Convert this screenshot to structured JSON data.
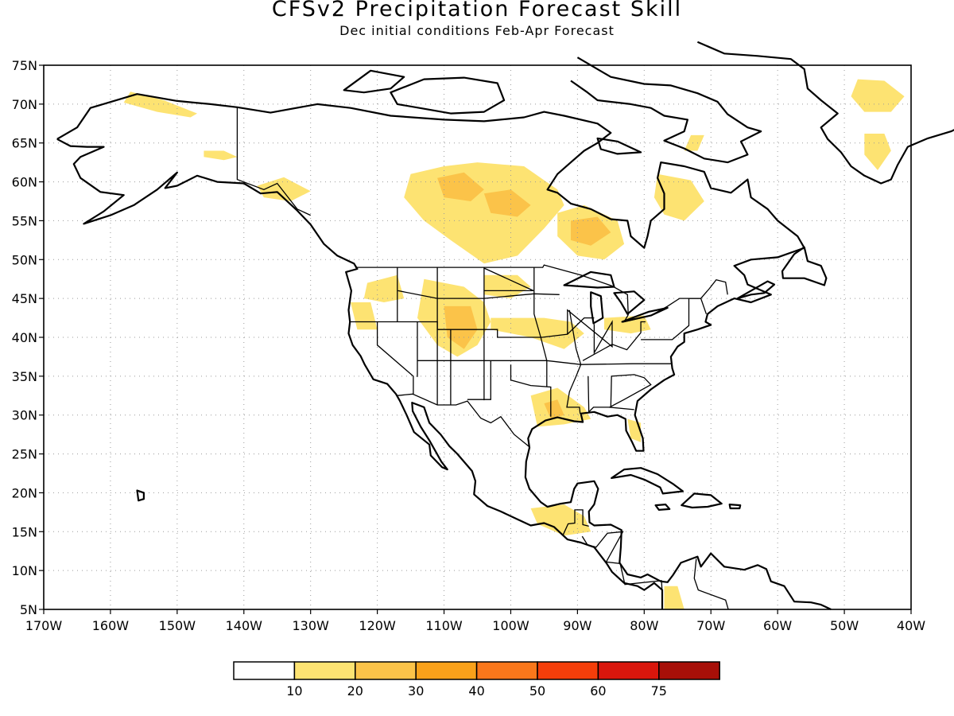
{
  "title": "CFSv2 Precipitation Forecast Skill",
  "subtitle": "Dec initial conditions   Feb-Apr Forecast",
  "chart_data": {
    "type": "map",
    "projection": "equirectangular",
    "lon_range": [
      -170,
      -40
    ],
    "lat_range": [
      5,
      75
    ],
    "grid": true,
    "lat_ticks": [
      "5N",
      "10N",
      "15N",
      "20N",
      "25N",
      "30N",
      "35N",
      "40N",
      "45N",
      "50N",
      "55N",
      "60N",
      "65N",
      "70N",
      "75N"
    ],
    "lon_ticks": [
      "170W",
      "160W",
      "150W",
      "140W",
      "130W",
      "120W",
      "110W",
      "100W",
      "90W",
      "80W",
      "70W",
      "60W",
      "50W",
      "40W"
    ],
    "colorbar": {
      "labels": [
        "10",
        "20",
        "30",
        "40",
        "50",
        "60",
        "75"
      ],
      "colors": [
        "#ffffff",
        "#fde372",
        "#fbc349",
        "#f9a11a",
        "#f9771b",
        "#f43e0a",
        "#d9160c",
        "#a70f08"
      ]
    },
    "skill_regions": [
      {
        "name": "alaska-north",
        "level": 1,
        "points": [
          [
            -157,
            71.6
          ],
          [
            -152,
            70.5
          ],
          [
            -147,
            68.8
          ],
          [
            -148,
            68.3
          ],
          [
            -153,
            69
          ],
          [
            -158,
            70.2
          ]
        ]
      },
      {
        "name": "alaska-south",
        "level": 1,
        "points": [
          [
            -146,
            63.2
          ],
          [
            -143,
            62.8
          ],
          [
            -141,
            63.2
          ],
          [
            -143,
            64
          ],
          [
            -146,
            64
          ]
        ]
      },
      {
        "name": "gulf-coast-bc",
        "level": 1,
        "points": [
          [
            -138,
            59.5
          ],
          [
            -134,
            60.6
          ],
          [
            -130,
            58.8
          ],
          [
            -133,
            57.5
          ],
          [
            -137,
            58
          ]
        ]
      },
      {
        "name": "nw-territories",
        "level": 1,
        "points": [
          [
            -116,
            58
          ],
          [
            -115,
            61
          ],
          [
            -110,
            62
          ],
          [
            -105,
            62.5
          ],
          [
            -98,
            62
          ],
          [
            -93,
            59
          ],
          [
            -92,
            57
          ],
          [
            -95,
            54
          ],
          [
            -99,
            50.5
          ],
          [
            -104,
            49.5
          ],
          [
            -109,
            52.5
          ],
          [
            -113,
            55
          ]
        ]
      },
      {
        "name": "nw-territories-core",
        "level": 2,
        "points": [
          [
            -111,
            60.5
          ],
          [
            -107,
            61.2
          ],
          [
            -104,
            59
          ],
          [
            -106,
            57.5
          ],
          [
            -110,
            58
          ]
        ]
      },
      {
        "name": "manitoba-core",
        "level": 2,
        "points": [
          [
            -104,
            58.5
          ],
          [
            -100,
            59
          ],
          [
            -97,
            57
          ],
          [
            -99,
            55.5
          ],
          [
            -103,
            56
          ]
        ]
      },
      {
        "name": "hudson-bay-south",
        "level": 1,
        "points": [
          [
            -93,
            56
          ],
          [
            -89,
            57
          ],
          [
            -84,
            55
          ],
          [
            -83,
            52
          ],
          [
            -86,
            50
          ],
          [
            -90,
            50.5
          ],
          [
            -93,
            53
          ]
        ]
      },
      {
        "name": "hudson-bay-core",
        "level": 2,
        "points": [
          [
            -91,
            55
          ],
          [
            -87,
            55.5
          ],
          [
            -85,
            53.5
          ],
          [
            -88,
            51.8
          ],
          [
            -91,
            52.5
          ]
        ]
      },
      {
        "name": "quebec",
        "level": 1,
        "points": [
          [
            -78,
            61
          ],
          [
            -73,
            60.2
          ],
          [
            -71,
            57.5
          ],
          [
            -74,
            55
          ],
          [
            -77,
            55.8
          ],
          [
            -78.5,
            58
          ]
        ]
      },
      {
        "name": "baffin",
        "level": 1,
        "points": [
          [
            -73,
            66
          ],
          [
            -71,
            66
          ],
          [
            -72,
            64
          ],
          [
            -74,
            64
          ]
        ]
      },
      {
        "name": "greenland-north",
        "level": 1,
        "points": [
          [
            -48,
            73.2
          ],
          [
            -44,
            73
          ],
          [
            -41,
            71
          ],
          [
            -43,
            69
          ],
          [
            -47,
            69
          ],
          [
            -49,
            71
          ]
        ]
      },
      {
        "name": "greenland-south",
        "level": 1,
        "points": [
          [
            -47,
            66.2
          ],
          [
            -44,
            66.2
          ],
          [
            -43,
            64
          ],
          [
            -45,
            61.5
          ],
          [
            -47,
            63.5
          ]
        ]
      },
      {
        "name": "washington-idaho",
        "level": 1,
        "points": [
          [
            -121.5,
            47
          ],
          [
            -117,
            48
          ],
          [
            -116,
            45
          ],
          [
            -119,
            44.5
          ],
          [
            -122,
            45
          ]
        ]
      },
      {
        "name": "oregon-coast",
        "level": 1,
        "points": [
          [
            -124,
            44.5
          ],
          [
            -121,
            44.5
          ],
          [
            -120,
            41
          ],
          [
            -123,
            41
          ]
        ]
      },
      {
        "name": "rockies",
        "level": 1,
        "points": [
          [
            -113,
            47.5
          ],
          [
            -107,
            46.5
          ],
          [
            -104,
            44.5
          ],
          [
            -103,
            42
          ],
          [
            -105,
            39
          ],
          [
            -108,
            37.5
          ],
          [
            -111,
            39
          ],
          [
            -114,
            42.5
          ]
        ]
      },
      {
        "name": "rockies-core",
        "level": 2,
        "points": [
          [
            -110,
            44
          ],
          [
            -106,
            44
          ],
          [
            -105,
            41
          ],
          [
            -107,
            38.5
          ],
          [
            -109.5,
            40
          ]
        ]
      },
      {
        "name": "nebraska-iowa",
        "level": 1,
        "points": [
          [
            -103,
            42.5
          ],
          [
            -95,
            42.5
          ],
          [
            -91,
            42
          ],
          [
            -89,
            40.5
          ],
          [
            -92,
            38.5
          ],
          [
            -97,
            40
          ],
          [
            -103,
            41
          ]
        ]
      },
      {
        "name": "dakotas",
        "level": 1,
        "points": [
          [
            -104,
            48
          ],
          [
            -99,
            48
          ],
          [
            -97,
            46.5
          ],
          [
            -100,
            45
          ],
          [
            -104,
            45.5
          ]
        ]
      },
      {
        "name": "great-lakes",
        "level": 1,
        "points": [
          [
            -86,
            42.5
          ],
          [
            -80,
            42.8
          ],
          [
            -79,
            41
          ],
          [
            -82,
            40.5
          ],
          [
            -86,
            41
          ]
        ]
      },
      {
        "name": "louisiana",
        "level": 1,
        "points": [
          [
            -97,
            32.5
          ],
          [
            -93,
            33.5
          ],
          [
            -89,
            31
          ],
          [
            -88,
            29.5
          ],
          [
            -92,
            28.8
          ],
          [
            -96,
            28.5
          ]
        ]
      },
      {
        "name": "louisiana-core",
        "level": 2,
        "points": [
          [
            -95,
            31.5
          ],
          [
            -93,
            32
          ],
          [
            -92,
            30
          ],
          [
            -94,
            29.5
          ]
        ]
      },
      {
        "name": "florida",
        "level": 1,
        "points": [
          [
            -82.5,
            29.5
          ],
          [
            -80.5,
            29
          ],
          [
            -80.5,
            26.5
          ],
          [
            -82,
            27
          ]
        ]
      },
      {
        "name": "central-america",
        "level": 1,
        "points": [
          [
            -97,
            18
          ],
          [
            -92,
            18.5
          ],
          [
            -89,
            17
          ],
          [
            -88,
            15
          ],
          [
            -92,
            14.5
          ],
          [
            -96,
            16
          ]
        ]
      },
      {
        "name": "panama-colombia",
        "level": 1,
        "points": [
          [
            -77,
            8
          ],
          [
            -75,
            8
          ],
          [
            -74,
            5
          ],
          [
            -77,
            5
          ]
        ]
      }
    ]
  }
}
